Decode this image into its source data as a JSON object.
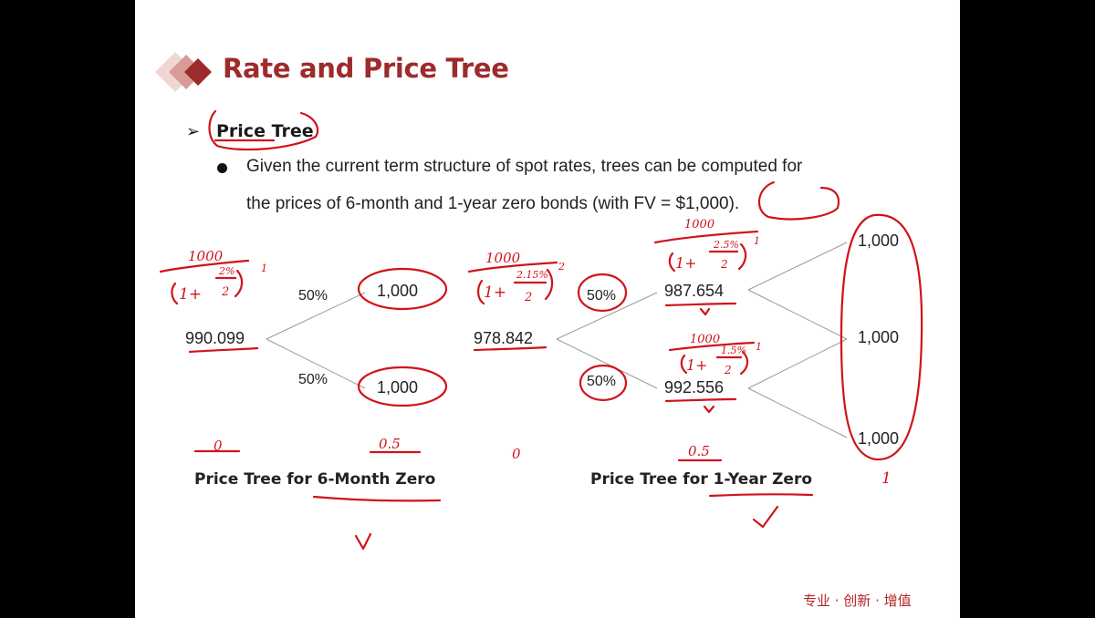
{
  "slide": {
    "title": "Rate and Price Tree",
    "section": "Price Tree",
    "bullet_line1": "Given the current term structure of spot rates, trees can be computed for",
    "bullet_line2": "the prices of 6-month and 1-year zero bonds (with FV = $1,000).",
    "footer": "专业 · 创新 · 增值"
  },
  "tree_6m": {
    "root": "990.099",
    "up_prob": "50%",
    "down_prob": "50%",
    "up": "1,000",
    "down": "1,000",
    "caption": "Price Tree for 6-Month Zero"
  },
  "tree_1y": {
    "root": "978.842",
    "up_prob": "50%",
    "down_prob": "50%",
    "up": "987.654",
    "down": "992.556",
    "uu": "1,000",
    "ud": "1,000",
    "dd": "1,000",
    "caption": "Price Tree for 1-Year Zero"
  },
  "annotations": {
    "n1000": "1000",
    "one_plus": "1+",
    "two": "2",
    "r6m": "2%",
    "r1y": "2.15%",
    "ru": "2.5%",
    "rd": "1.5%",
    "exp1": "1",
    "exp2": "2",
    "t0": "0",
    "t05": "0.5",
    "t1": "1"
  },
  "colors": {
    "title": "#9e2b2b",
    "ink": "#d0131b",
    "footer": "#b3262a"
  }
}
